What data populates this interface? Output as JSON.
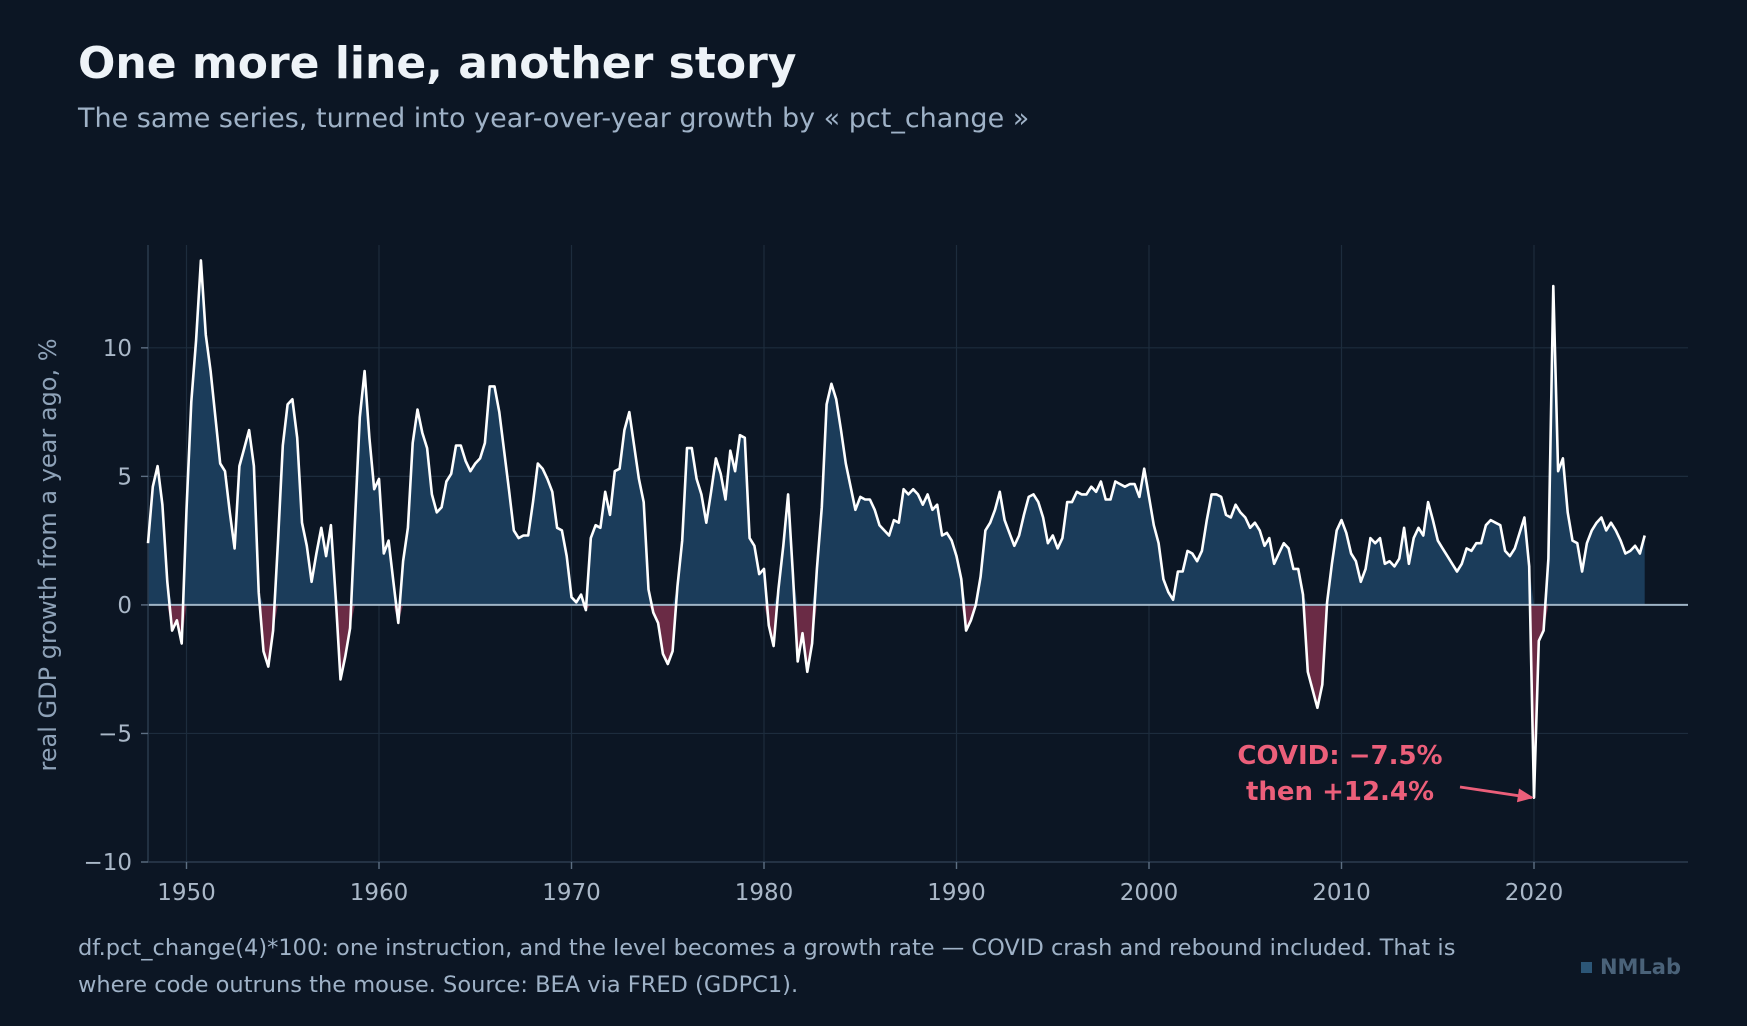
{
  "header": {
    "title": "One more line, another story",
    "subtitle": "The same series, turned into year-over-year growth by « pct_change »"
  },
  "footer": {
    "note": "df.pct_change(4)*100: one instruction, and the level becomes a growth rate — COVID crash and rebound included. That is where code outruns the mouse. Source: BEA via FRED (GDPC1)."
  },
  "brand": {
    "label": "NMLab"
  },
  "colors": {
    "background": "#0c1624",
    "line": "#ffffff",
    "positive_fill": "#1b3c5a",
    "negative_fill": "#6a2b45",
    "annotation": "#ec5f7a",
    "zero_line": "#9fb4c6"
  },
  "chart_data": {
    "type": "area",
    "ylabel": "real GDP growth from a year ago, %",
    "xlabel": "",
    "xlim": [
      1948,
      2028
    ],
    "ylim": [
      -10,
      14
    ],
    "x_ticks": [
      1950,
      1960,
      1970,
      1980,
      1990,
      2000,
      2010,
      2020
    ],
    "y_ticks": [
      10,
      5,
      0,
      -5,
      -10
    ],
    "y_tick_labels": [
      "10",
      "5",
      "0",
      "−5",
      "−10"
    ],
    "grid": true,
    "annotation": {
      "lines": [
        "COVID: −7.5%",
        "then +12.4%"
      ],
      "point": [
        2020.25,
        -7.5
      ]
    },
    "series": [
      {
        "x": [
          1948.0,
          1948.25,
          1948.5,
          1948.75,
          1949.0,
          1949.25,
          1949.5,
          1949.75,
          1950.0,
          1950.25,
          1950.5,
          1950.75,
          1951.0,
          1951.25,
          1951.5,
          1951.75,
          1952.0,
          1952.25,
          1952.5,
          1952.75,
          1953.0,
          1953.25,
          1953.5,
          1953.75,
          1954.0,
          1954.25,
          1954.5,
          1954.75,
          1955.0,
          1955.25,
          1955.5,
          1955.75,
          1956.0,
          1956.25,
          1956.5,
          1956.75,
          1957.0,
          1957.25,
          1957.5,
          1957.75,
          1958.0,
          1958.25,
          1958.5,
          1958.75,
          1959.0,
          1959.25,
          1959.5,
          1959.75,
          1960.0,
          1960.25,
          1960.5,
          1960.75,
          1961.0,
          1961.25,
          1961.5,
          1961.75,
          1962.0,
          1962.25,
          1962.5,
          1962.75,
          1963.0,
          1963.25,
          1963.5,
          1963.75,
          1964.0,
          1964.25,
          1964.5,
          1964.75,
          1965.0,
          1965.25,
          1965.5,
          1965.75,
          1966.0,
          1966.25,
          1966.5,
          1966.75,
          1967.0,
          1967.25,
          1967.5,
          1967.75,
          1968.0,
          1968.25,
          1968.5,
          1968.75,
          1969.0,
          1969.25,
          1969.5,
          1969.75,
          1970.0,
          1970.25,
          1970.5,
          1970.75,
          1971.0,
          1971.25,
          1971.5,
          1971.75,
          1972.0,
          1972.25,
          1972.5,
          1972.75,
          1973.0,
          1973.25,
          1973.5,
          1973.75,
          1974.0,
          1974.25,
          1974.5,
          1974.75,
          1975.0,
          1975.25,
          1975.5,
          1975.75,
          1976.0,
          1976.25,
          1976.5,
          1976.75,
          1977.0,
          1977.25,
          1977.5,
          1977.75,
          1978.0,
          1978.25,
          1978.5,
          1978.75,
          1979.0,
          1979.25,
          1979.5,
          1979.75,
          1980.0,
          1980.25,
          1980.5,
          1980.75,
          1981.0,
          1981.25,
          1981.5,
          1981.75,
          1982.0,
          1982.25,
          1982.5,
          1982.75,
          1983.0,
          1983.25,
          1983.5,
          1983.75,
          1984.0,
          1984.25,
          1984.5,
          1984.75,
          1985.0,
          1985.25,
          1985.5,
          1985.75,
          1986.0,
          1986.25,
          1986.5,
          1986.75,
          1987.0,
          1987.25,
          1987.5,
          1987.75,
          1988.0,
          1988.25,
          1988.5,
          1988.75,
          1989.0,
          1989.25,
          1989.5,
          1989.75,
          1990.0,
          1990.25,
          1990.5,
          1990.75,
          1991.0,
          1991.25,
          1991.5,
          1991.75,
          1992.0,
          1992.25,
          1992.5,
          1992.75,
          1993.0,
          1993.25,
          1993.5,
          1993.75,
          1994.0,
          1994.25,
          1994.5,
          1994.75,
          1995.0,
          1995.25,
          1995.5,
          1995.75,
          1996.0,
          1996.25,
          1996.5,
          1996.75,
          1997.0,
          1997.25,
          1997.5,
          1997.75,
          1998.0,
          1998.25,
          1998.5,
          1998.75,
          1999.0,
          1999.25,
          1999.5,
          1999.75,
          2000.0,
          2000.25,
          2000.5,
          2000.75,
          2001.0,
          2001.25,
          2001.5,
          2001.75,
          2002.0,
          2002.25,
          2002.5,
          2002.75,
          2003.0,
          2003.25,
          2003.5,
          2003.75,
          2004.0,
          2004.25,
          2004.5,
          2004.75,
          2005.0,
          2005.25,
          2005.5,
          2005.75,
          2006.0,
          2006.25,
          2006.5,
          2006.75,
          2007.0,
          2007.25,
          2007.5,
          2007.75,
          2008.0,
          2008.25,
          2008.5,
          2008.75,
          2009.0,
          2009.25,
          2009.5,
          2009.75,
          2010.0,
          2010.25,
          2010.5,
          2010.75,
          2011.0,
          2011.25,
          2011.5,
          2011.75,
          2012.0,
          2012.25,
          2012.5,
          2012.75,
          2013.0,
          2013.25,
          2013.5,
          2013.75,
          2014.0,
          2014.25,
          2014.5,
          2014.75,
          2015.0,
          2015.25,
          2015.5,
          2015.75,
          2016.0,
          2016.25,
          2016.5,
          2016.75,
          2017.0,
          2017.25,
          2017.5,
          2017.75,
          2018.0,
          2018.25,
          2018.5,
          2018.75,
          2019.0,
          2019.25,
          2019.5,
          2019.75,
          2020.0,
          2020.25,
          2020.5,
          2020.75,
          2021.0,
          2021.25,
          2021.5,
          2021.75,
          2022.0,
          2022.25,
          2022.5,
          2022.75,
          2023.0,
          2023.25,
          2023.5,
          2023.75,
          2024.0,
          2024.25,
          2024.5,
          2024.75,
          2025.0,
          2025.25,
          2025.5,
          2025.75
        ],
        "y": [
          2.4,
          4.6,
          5.4,
          3.9,
          0.9,
          -1.0,
          -0.6,
          -1.5,
          3.7,
          7.9,
          10.3,
          13.4,
          10.5,
          9.1,
          7.3,
          5.5,
          5.2,
          3.6,
          2.2,
          5.4,
          6.1,
          6.8,
          5.4,
          0.5,
          -1.8,
          -2.4,
          -1.0,
          2.4,
          6.2,
          7.8,
          8.0,
          6.5,
          3.2,
          2.3,
          0.9,
          2.0,
          3.0,
          1.9,
          3.1,
          0.3,
          -2.9,
          -2.0,
          -0.9,
          3.2,
          7.3,
          9.1,
          6.5,
          4.5,
          4.9,
          2.0,
          2.5,
          0.9,
          -0.7,
          1.7,
          3.0,
          6.3,
          7.6,
          6.7,
          6.1,
          4.3,
          3.6,
          3.8,
          4.8,
          5.1,
          6.2,
          6.2,
          5.6,
          5.2,
          5.5,
          5.7,
          6.3,
          8.5,
          8.5,
          7.5,
          6.0,
          4.5,
          2.9,
          2.6,
          2.7,
          2.7,
          4.0,
          5.5,
          5.3,
          4.9,
          4.4,
          3.0,
          2.9,
          1.9,
          0.3,
          0.1,
          0.4,
          -0.2,
          2.6,
          3.1,
          3.0,
          4.4,
          3.5,
          5.2,
          5.3,
          6.8,
          7.5,
          6.2,
          4.9,
          4.0,
          0.6,
          -0.3,
          -0.7,
          -1.9,
          -2.3,
          -1.8,
          0.7,
          2.5,
          6.1,
          6.1,
          4.9,
          4.3,
          3.2,
          4.4,
          5.7,
          5.1,
          4.1,
          6.0,
          5.2,
          6.6,
          6.5,
          2.6,
          2.3,
          1.2,
          1.4,
          -0.8,
          -1.6,
          0.6,
          2.3,
          4.3,
          1.2,
          -2.2,
          -1.1,
          -2.6,
          -1.5,
          1.4,
          3.8,
          7.8,
          8.6,
          8.0,
          6.8,
          5.5,
          4.6,
          3.7,
          4.2,
          4.1,
          4.1,
          3.7,
          3.1,
          2.9,
          2.7,
          3.3,
          3.2,
          4.5,
          4.3,
          4.5,
          4.3,
          3.9,
          4.3,
          3.7,
          3.9,
          2.7,
          2.8,
          2.5,
          1.9,
          1.0,
          -1.0,
          -0.6,
          0.0,
          1.1,
          2.9,
          3.2,
          3.7,
          4.4,
          3.3,
          2.8,
          2.3,
          2.7,
          3.5,
          4.2,
          4.3,
          4.0,
          3.4,
          2.4,
          2.7,
          2.2,
          2.6,
          4.0,
          4.0,
          4.4,
          4.3,
          4.3,
          4.6,
          4.4,
          4.8,
          4.1,
          4.1,
          4.8,
          4.7,
          4.6,
          4.7,
          4.7,
          4.2,
          5.3,
          4.2,
          3.1,
          2.4,
          1.0,
          0.5,
          0.2,
          1.3,
          1.3,
          2.1,
          2.0,
          1.7,
          2.1,
          3.3,
          4.3,
          4.3,
          4.2,
          3.5,
          3.4,
          3.9,
          3.6,
          3.4,
          3.0,
          3.2,
          2.9,
          2.3,
          2.6,
          1.6,
          2.0,
          2.4,
          2.2,
          1.4,
          1.4,
          0.4,
          -2.6,
          -3.3,
          -4.0,
          -3.1,
          0.1,
          1.6,
          2.9,
          3.3,
          2.8,
          2.0,
          1.7,
          0.9,
          1.4,
          2.6,
          2.4,
          2.6,
          1.6,
          1.7,
          1.5,
          1.8,
          3.0,
          1.6,
          2.6,
          3.0,
          2.7,
          4.0,
          3.3,
          2.5,
          2.2,
          1.9,
          1.6,
          1.3,
          1.6,
          2.2,
          2.1,
          2.4,
          2.4,
          3.1,
          3.3,
          3.2,
          3.1,
          2.1,
          1.9,
          2.2,
          2.8,
          3.4,
          1.5,
          -7.5,
          -1.4,
          -1.0,
          1.8,
          12.4,
          5.2,
          5.7,
          3.6,
          2.5,
          2.4,
          1.3,
          2.4,
          2.9,
          3.2,
          3.4,
          2.9,
          3.2,
          2.9,
          2.5,
          2.0,
          2.1,
          2.3,
          2.0,
          2.7
        ]
      }
    ]
  }
}
